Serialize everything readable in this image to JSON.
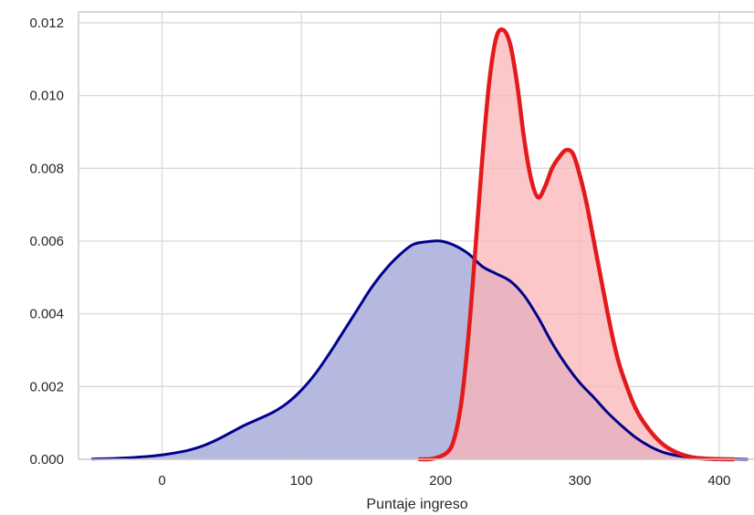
{
  "chart_data": {
    "type": "area",
    "title": "",
    "xlabel": "Puntaje ingreso",
    "ylabel": "",
    "xlim": [
      -60,
      425
    ],
    "ylim": [
      0,
      0.0123
    ],
    "grid": true,
    "legend": "none",
    "x_ticks": [
      "0",
      "100",
      "200",
      "300",
      "400"
    ],
    "x_tick_values": [
      0,
      100,
      200,
      300,
      400
    ],
    "y_ticks": [
      "0.000",
      "0.002",
      "0.004",
      "0.006",
      "0.008",
      "0.010",
      "0.012"
    ],
    "y_tick_values": [
      0,
      0.002,
      0.004,
      0.006,
      0.008,
      0.01,
      0.012
    ],
    "series": [
      {
        "line_color": "#00008b",
        "fill_color": "#aeb1dc",
        "x": [
          -50,
          -30,
          -10,
          0,
          10,
          20,
          30,
          40,
          50,
          60,
          70,
          80,
          90,
          100,
          110,
          120,
          130,
          140,
          150,
          160,
          170,
          180,
          190,
          200,
          210,
          220,
          230,
          240,
          250,
          260,
          270,
          280,
          290,
          300,
          310,
          320,
          330,
          340,
          350,
          360,
          370,
          380,
          390,
          400,
          410,
          420
        ],
        "y": [
          1e-05,
          3e-05,
          8e-05,
          0.00012,
          0.00018,
          0.00026,
          0.00038,
          0.00055,
          0.00075,
          0.00095,
          0.00112,
          0.0013,
          0.00155,
          0.0019,
          0.00235,
          0.0029,
          0.0035,
          0.0041,
          0.0047,
          0.0052,
          0.0056,
          0.0059,
          0.00598,
          0.006,
          0.00588,
          0.00565,
          0.0053,
          0.0051,
          0.0049,
          0.0045,
          0.0039,
          0.0032,
          0.0026,
          0.0021,
          0.0017,
          0.00128,
          0.00092,
          0.0006,
          0.00036,
          0.00019,
          0.0001,
          5e-05,
          2e-05,
          1e-05,
          5e-06,
          0.0
        ]
      },
      {
        "line_color": "#e31a1c",
        "fill_color": "#fbb4b6",
        "x": [
          185,
          195,
          205,
          210,
          215,
          220,
          225,
          230,
          235,
          240,
          245,
          250,
          255,
          260,
          265,
          270,
          275,
          280,
          285,
          290,
          295,
          300,
          305,
          310,
          315,
          320,
          325,
          330,
          340,
          350,
          360,
          370,
          380,
          390,
          400,
          410
        ],
        "y": [
          0.0,
          2e-05,
          0.0002,
          0.0006,
          0.0016,
          0.0034,
          0.0058,
          0.0083,
          0.0104,
          0.0116,
          0.0118,
          0.0114,
          0.0103,
          0.0088,
          0.0077,
          0.0072,
          0.0075,
          0.008,
          0.0083,
          0.0085,
          0.0084,
          0.0078,
          0.007,
          0.006,
          0.005,
          0.004,
          0.0031,
          0.0024,
          0.0014,
          0.0008,
          0.0004,
          0.00018,
          6e-05,
          2e-05,
          5e-06,
          0.0
        ]
      }
    ]
  }
}
